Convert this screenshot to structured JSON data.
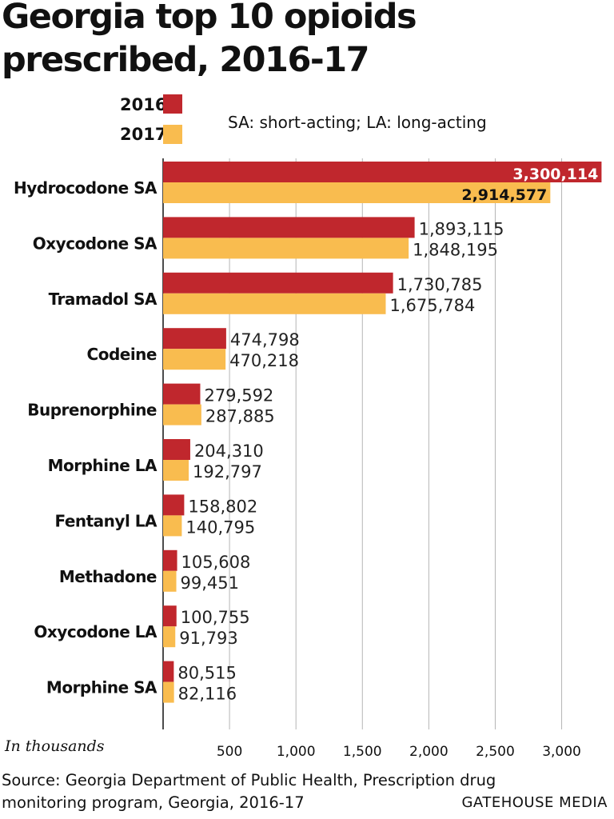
{
  "title": "Georgia top 10 opioids prescribed, 2016-17",
  "note": "SA: short-acting; LA: long-acting",
  "units_label": "In thousands",
  "source": "Source: Georgia Department of Public Health, Prescription drug monitoring program, Georgia, 2016-17",
  "credit": "GATEHOUSE MEDIA",
  "colors": {
    "2016": "#c0272d",
    "2017": "#f9bc4f",
    "grid": "#b5b5b5"
  },
  "chart_data": {
    "type": "bar",
    "orientation": "horizontal",
    "title": "Georgia top 10 opioids prescribed, 2016-17",
    "categories": [
      "Hydrocodone SA",
      "Oxycodone SA",
      "Tramadol SA",
      "Codeine",
      "Buprenorphine",
      "Morphine LA",
      "Fentanyl LA",
      "Methadone",
      "Oxycodone LA",
      "Morphine SA"
    ],
    "series": [
      {
        "name": "2016",
        "values": [
          3300114,
          1893115,
          1730785,
          474798,
          279592,
          204310,
          158802,
          105608,
          100755,
          80515
        ],
        "labels": [
          "3,300,114",
          "1,893,115",
          "1,730,785",
          "474,798",
          "279,592",
          "204,310",
          "158,802",
          "105,608",
          "100,755",
          "80,515"
        ]
      },
      {
        "name": "2017",
        "values": [
          2914577,
          1848195,
          1675784,
          470218,
          287885,
          192797,
          140795,
          99451,
          91793,
          82116
        ],
        "labels": [
          "2,914,577",
          "1,848,195",
          "1,675,784",
          "470,218",
          "287,885",
          "192,797",
          "140,795",
          "99,451",
          "91,793",
          "82,116"
        ]
      }
    ],
    "x_ticks": [
      500,
      1000,
      1500,
      2000,
      2500,
      3000
    ],
    "x_tick_labels": [
      "500",
      "1,000",
      "1,500",
      "2,000",
      "2,500",
      "3,000"
    ],
    "xlabel": "In thousands",
    "xlim": [
      0,
      3300
    ],
    "grid": true,
    "legend_position": "top-left"
  }
}
